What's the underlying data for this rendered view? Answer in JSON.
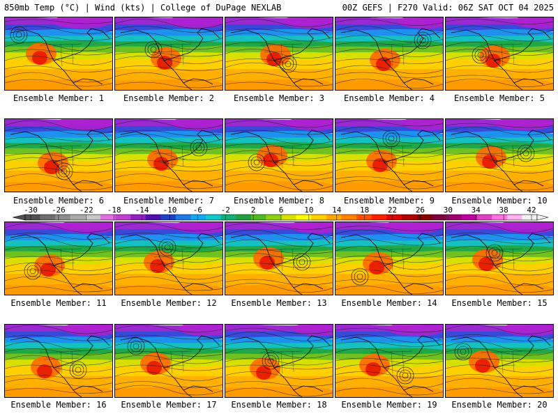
{
  "header": {
    "left": "850mb Temp (°C) | Wind (kts) | College of DuPage NEXLAB",
    "right": "00Z GEFS | F270 Valid: 06Z SAT OCT 04 2025"
  },
  "members": [
    "Ensemble Member: 1",
    "Ensemble Member: 2",
    "Ensemble Member: 3",
    "Ensemble Member: 4",
    "Ensemble Member: 5",
    "Ensemble Member: 6",
    "Ensemble Member: 7",
    "Ensemble Member: 8",
    "Ensemble Member: 9",
    "Ensemble Member: 10",
    "Ensemble Member: 11",
    "Ensemble Member: 12",
    "Ensemble Member: 13",
    "Ensemble Member: 14",
    "Ensemble Member: 15",
    "Ensemble Member: 16",
    "Ensemble Member: 17",
    "Ensemble Member: 18",
    "Ensemble Member: 19",
    "Ensemble Member: 20"
  ],
  "colorbar": {
    "tick_labels": [
      "-30",
      "-26",
      "-22",
      "-18",
      "-14",
      "-10",
      "-6",
      "-2",
      "2",
      "6",
      "10",
      "14",
      "18",
      "22",
      "26",
      "30",
      "34",
      "38",
      "42"
    ],
    "colors": [
      "#505050",
      "#6e6e6e",
      "#8c8c8c",
      "#aaaaaa",
      "#c8c8c8",
      "#e070e0",
      "#c040d0",
      "#9020c0",
      "#5010b0",
      "#2040c8",
      "#1e78e6",
      "#14a8f0",
      "#10c8c8",
      "#10b078",
      "#20a040",
      "#50b820",
      "#90d010",
      "#d8e000",
      "#ffff00",
      "#ffd000",
      "#ffa800",
      "#ff8000",
      "#ff5000",
      "#ff2000",
      "#e00000",
      "#b00000",
      "#880000",
      "#800040",
      "#a00070",
      "#c000a0",
      "#e040c8",
      "#ff70e0",
      "#ffb0f0",
      "#f0f0f0"
    ]
  }
}
